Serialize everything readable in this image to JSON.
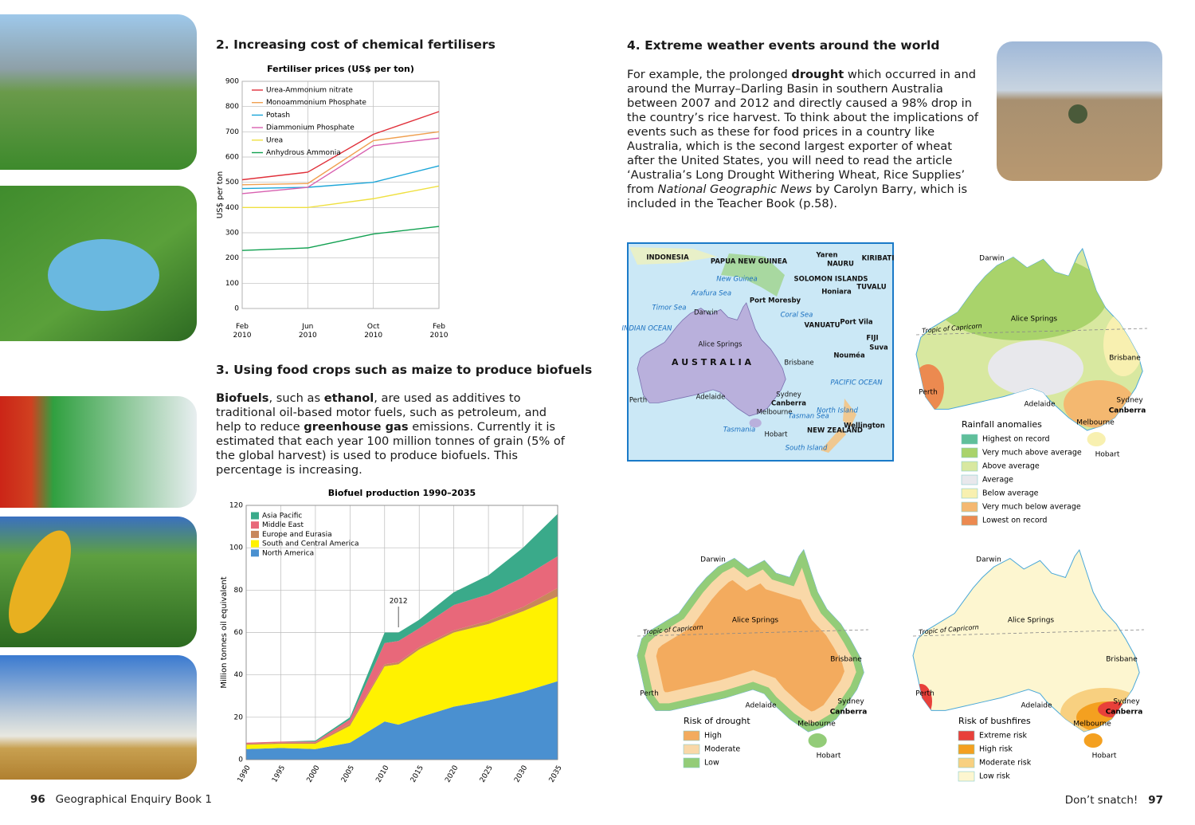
{
  "left_page": {
    "section2_heading": "2. Increasing cost of chemical fertilisers",
    "section3_heading": "3. Using food crops such as maize to produce biofuels",
    "section3_text": [
      "Biofuels",
      ", such as ",
      "ethanol",
      ", are used as additives to traditional oil-based motor fuels, such as petroleum, and help to reduce ",
      "greenhouse gas",
      " emissions. Currently it is estimated that each year 100 million tonnes of grain (5% of the global harvest) is used to produce biofuels. This percentage is increasing."
    ],
    "page_number": "96",
    "footer": "Geographical Enquiry Book 1"
  },
  "right_page": {
    "section4_heading": "4. Extreme weather events around the world",
    "section4_text": [
      "For example, the prolonged ",
      "drought",
      " which occurred in and around the Murray–Darling Basin in southern Australia between 2007 and 2012 and directly caused a 98% drop in the country’s rice harvest. To think about the implications of events such as these for food prices in a country like Australia, which is the second largest exporter of wheat after the United States, you will need to read the article ‘Australia’s Long Drought Withering Wheat, Rice Supplies’ from ",
      "National Geographic News",
      " by Carolyn Barry, which is included in the Teacher Book (p.58)."
    ],
    "footer": "Don’t snatch!",
    "page_number": "97"
  },
  "chart_data": [
    {
      "type": "line",
      "title": "Fertiliser prices (US$ per ton)",
      "y_label": "US$ per ton",
      "categories": [
        "Feb 2010",
        "Jun 2010",
        "Oct 2010",
        "Feb 2010"
      ],
      "ylim": [
        0,
        900
      ],
      "yticks": [
        0,
        100,
        200,
        300,
        400,
        500,
        600,
        700,
        800,
        900
      ],
      "grid": true,
      "series": [
        {
          "name": "Urea-Ammonium nitrate",
          "color": "#e0303a",
          "values": [
            510,
            540,
            690,
            780
          ]
        },
        {
          "name": "Monoammonium Phosphate",
          "color": "#f0a050",
          "values": [
            490,
            495,
            665,
            700
          ]
        },
        {
          "name": "Potash",
          "color": "#1ca6d8",
          "values": [
            475,
            480,
            500,
            565
          ]
        },
        {
          "name": "Diammonium Phosphate",
          "color": "#d860b0",
          "values": [
            455,
            480,
            645,
            675
          ]
        },
        {
          "name": "Urea",
          "color": "#efe040",
          "values": [
            400,
            400,
            435,
            485
          ]
        },
        {
          "name": "Anhydrous Ammonia",
          "color": "#10a050",
          "values": [
            230,
            240,
            295,
            325
          ]
        }
      ]
    },
    {
      "type": "stacked_area",
      "title": "Biofuel production 1990–2035",
      "y_label": "Million tonnes oil equivalent",
      "x": [
        1990,
        1995,
        2000,
        2005,
        2010,
        2012,
        2015,
        2020,
        2025,
        2030,
        2035
      ],
      "xlim": [
        1990,
        2035
      ],
      "xticks": [
        1990,
        1995,
        2000,
        2005,
        2010,
        2015,
        2020,
        2025,
        2030,
        2035
      ],
      "ylim": [
        0,
        120
      ],
      "yticks": [
        0,
        20,
        40,
        60,
        80,
        100,
        120
      ],
      "grid": true,
      "annotations": [
        {
          "text": "2012",
          "x": 2012
        }
      ],
      "series": [
        {
          "name": "Asia Pacific",
          "color": "#3aaa8a",
          "values": [
            0,
            0,
            0.5,
            1,
            5,
            4,
            4,
            6,
            9,
            14,
            20
          ]
        },
        {
          "name": "Middle East",
          "color": "#e8687a",
          "values": [
            0.5,
            0.5,
            0.5,
            2,
            10,
            10,
            9,
            12,
            12.5,
            14,
            15
          ]
        },
        {
          "name": "Europe and Eurasia",
          "color": "#c8875a",
          "values": [
            0.5,
            0.5,
            0.5,
            1,
            1,
            1,
            1,
            1,
            1.5,
            2,
            4
          ]
        },
        {
          "name": "South and Central America",
          "color": "#fff200",
          "values": [
            2,
            2,
            2.5,
            8,
            26,
            28.5,
            32,
            35,
            36,
            38,
            40
          ]
        },
        {
          "name": "North America",
          "color": "#4a90d0",
          "values": [
            5,
            5.5,
            5,
            8,
            18,
            16.5,
            20,
            25,
            28,
            32,
            37
          ]
        }
      ]
    }
  ],
  "region_map": {
    "labels": [
      "INDONESIA",
      "PAPUA NEW GUINEA",
      "New Guinea",
      "Arafura Sea",
      "Timor Sea",
      "Darwin",
      "INDIAN OCEAN",
      "Alice Springs",
      "A U S T R A L I A",
      "Brisbane",
      "Perth",
      "Adelaide",
      "Sydney",
      "Canberra",
      "Melbourne",
      "Tasmania",
      "Hobart",
      "Tasman Sea",
      "North Island",
      "South Island",
      "NEW ZEALAND",
      "Wellington",
      "Port Moresby",
      "Yaren",
      "NAURU",
      "KIRIBATI",
      "SOLOMON ISLANDS",
      "Honiara",
      "TUVALU",
      "Coral Sea",
      "VANUATU",
      "Port Vila",
      "FIJI",
      "Suva",
      "Nouméa",
      "PACIFIC OCEAN"
    ]
  },
  "climate_maps": [
    {
      "title": "Rainfall anomalies",
      "legend": [
        {
          "label": "Highest on record",
          "color": "#5fbf9a"
        },
        {
          "label": "Very much above average",
          "color": "#a9d36b"
        },
        {
          "label": "Above average",
          "color": "#d8e8a0"
        },
        {
          "label": "Average",
          "color": "#e8e8ec"
        },
        {
          "label": "Below average",
          "color": "#f8f0b0"
        },
        {
          "label": "Very much below average",
          "color": "#f4b870"
        },
        {
          "label": "Lowest on record",
          "color": "#ec8a50"
        }
      ],
      "labels": [
        "Darwin",
        "Alice Springs",
        "Tropic of Capricorn",
        "Brisbane",
        "Perth",
        "Adelaide",
        "Sydney",
        "Canberra",
        "Melbourne",
        "Hobart"
      ]
    },
    {
      "title": "Risk of drought",
      "legend": [
        {
          "label": "High",
          "color": "#f3ab5e"
        },
        {
          "label": "Moderate",
          "color": "#f9d8a8"
        },
        {
          "label": "Low",
          "color": "#93cc78"
        }
      ],
      "labels": [
        "Darwin",
        "Alice Springs",
        "Tropic of Capricorn",
        "Brisbane",
        "Perth",
        "Adelaide",
        "Sydney",
        "Canberra",
        "Melbourne",
        "Hobart"
      ]
    },
    {
      "title": "Risk of bushfires",
      "legend": [
        {
          "label": "Extreme risk",
          "color": "#e8403a"
        },
        {
          "label": "High risk",
          "color": "#f4a020"
        },
        {
          "label": "Moderate risk",
          "color": "#f8d080"
        },
        {
          "label": "Low risk",
          "color": "#fdf6d0"
        }
      ],
      "labels": [
        "Darwin",
        "Alice Springs",
        "Tropic of Capricorn",
        "Brisbane",
        "Perth",
        "Adelaide",
        "Sydney",
        "Canberra",
        "Melbourne",
        "Hobart"
      ]
    }
  ]
}
